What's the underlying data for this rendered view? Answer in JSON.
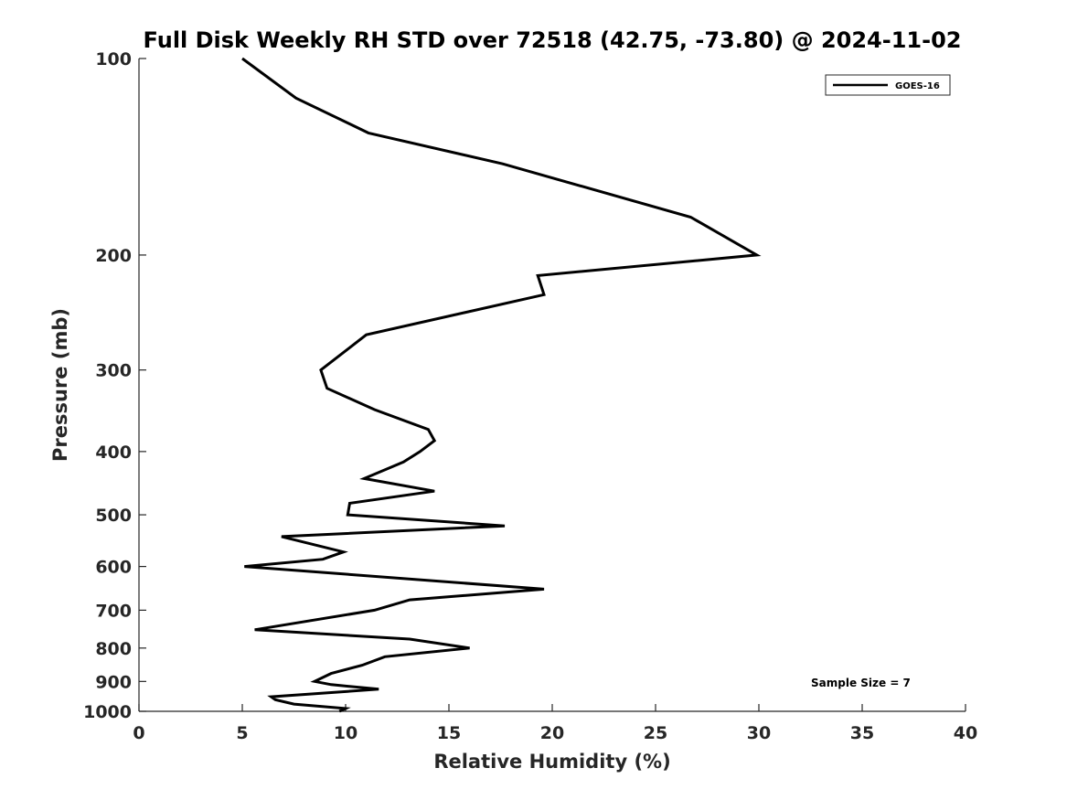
{
  "chart_data": {
    "type": "line",
    "title": "Full Disk Weekly RH STD over 72518 (42.75, -73.80) @ 2024-11-02",
    "xlabel": "Relative Humidity (%)",
    "ylabel": "Pressure (mb)",
    "xlim": [
      0,
      40
    ],
    "ylim": [
      1000,
      100
    ],
    "yscale": "log",
    "x_ticks": [
      0,
      5,
      10,
      15,
      20,
      25,
      30,
      35,
      40
    ],
    "x_tick_labels": [
      "0",
      "5",
      "10",
      "15",
      "20",
      "25",
      "30",
      "35",
      "40"
    ],
    "y_ticks": [
      100,
      200,
      300,
      400,
      500,
      600,
      700,
      800,
      900,
      1000
    ],
    "y_tick_labels": [
      "100",
      "200",
      "300",
      "400",
      "500",
      "600",
      "700",
      "800",
      "900",
      "1000"
    ],
    "grid": false,
    "legend_position": "top-right",
    "annotation": "Sample Size = 7",
    "series": [
      {
        "name": "GOES-16",
        "color": "#000000",
        "x": [
          5.0,
          7.6,
          11.1,
          17.6,
          26.7,
          29.9,
          19.3,
          19.6,
          11.0,
          8.8,
          9.1,
          11.4,
          14.0,
          14.3,
          13.6,
          12.8,
          10.9,
          14.3,
          10.2,
          10.1,
          17.7,
          6.9,
          9.9,
          8.9,
          5.1,
          19.6,
          13.1,
          11.4,
          5.6,
          13.1,
          16.0,
          11.9,
          10.8,
          9.3,
          8.5,
          9.3,
          11.6,
          6.4,
          6.6,
          7.5,
          10.0,
          9.7
        ],
        "y": [
          100,
          115,
          130,
          145,
          175,
          200,
          215,
          230,
          265,
          300,
          320,
          345,
          370,
          385,
          400,
          415,
          440,
          460,
          480,
          500,
          520,
          540,
          570,
          585,
          600,
          650,
          675,
          700,
          750,
          775,
          800,
          825,
          850,
          875,
          900,
          910,
          925,
          950,
          960,
          975,
          990,
          1000
        ]
      }
    ]
  }
}
